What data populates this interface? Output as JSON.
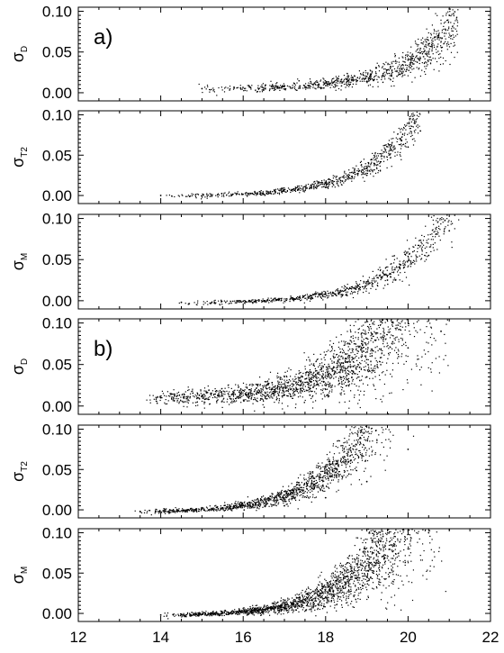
{
  "chart_data": [
    {
      "type": "scatter",
      "panel_label": "a)",
      "ylabel": "σ",
      "ylabel_sub": "D",
      "xlim": [
        12,
        22
      ],
      "ylim": [
        -0.01,
        0.105
      ],
      "yticks": [
        "0.00",
        "0.05",
        "0.10"
      ],
      "xticks": [],
      "curve": {
        "x0": 14.8,
        "x1": 21.2,
        "baseline": 0.005,
        "coef": 0.00052,
        "rate": 0.8,
        "xref": 14.8
      },
      "spread": 0.2,
      "density": 1.0,
      "trend": [
        {
          "x": 15,
          "y": 0.005
        },
        {
          "x": 18,
          "y": 0.012
        },
        {
          "x": 19,
          "y": 0.02
        },
        {
          "x": 20,
          "y": 0.04
        },
        {
          "x": 20.5,
          "y": 0.06
        },
        {
          "x": 21,
          "y": 0.095
        }
      ]
    },
    {
      "type": "scatter",
      "panel_label": "",
      "ylabel": "σ",
      "ylabel_sub": "T2",
      "xlim": [
        12,
        22
      ],
      "ylim": [
        -0.01,
        0.105
      ],
      "yticks": [
        "0.00",
        "0.05",
        "0.10"
      ],
      "xticks": [],
      "curve": {
        "x0": 14.0,
        "x1": 20.3,
        "baseline": 0.0,
        "coef": 0.0006,
        "rate": 0.82,
        "xref": 14.0
      },
      "spread": 0.12,
      "density": 0.8,
      "trend": [
        {
          "x": 14,
          "y": 0.0
        },
        {
          "x": 18,
          "y": 0.01
        },
        {
          "x": 19,
          "y": 0.025
        },
        {
          "x": 20,
          "y": 0.06
        },
        {
          "x": 20.3,
          "y": 0.08
        }
      ]
    },
    {
      "type": "scatter",
      "panel_label": "",
      "ylabel": "σ",
      "ylabel_sub": "M",
      "xlim": [
        12,
        22
      ],
      "ylim": [
        -0.01,
        0.105
      ],
      "yticks": [
        "0.00",
        "0.05",
        "0.10"
      ],
      "xticks": [],
      "curve": {
        "x0": 14.3,
        "x1": 21.3,
        "baseline": -0.002,
        "coef": 0.00055,
        "rate": 0.8,
        "xref": 14.3
      },
      "spread": 0.16,
      "density": 0.9,
      "trend": [
        {
          "x": 14.5,
          "y": -0.002
        },
        {
          "x": 18,
          "y": 0.008
        },
        {
          "x": 19.5,
          "y": 0.025
        },
        {
          "x": 20.5,
          "y": 0.055
        },
        {
          "x": 21,
          "y": 0.085
        }
      ]
    },
    {
      "type": "scatter",
      "panel_label": "b)",
      "ylabel": "σ",
      "ylabel_sub": "D",
      "xlim": [
        12,
        22
      ],
      "ylim": [
        -0.01,
        0.105
      ],
      "yticks": [
        "0.00",
        "0.05",
        "0.10"
      ],
      "xticks": [],
      "curve": {
        "x0": 13.6,
        "x1": 21.0,
        "baseline": 0.01,
        "coef": 0.0011,
        "rate": 0.74,
        "xref": 13.6
      },
      "spread": 0.35,
      "density": 2.6,
      "trend": [
        {
          "x": 14,
          "y": 0.01
        },
        {
          "x": 17,
          "y": 0.013
        },
        {
          "x": 18,
          "y": 0.02
        },
        {
          "x": 19,
          "y": 0.035
        },
        {
          "x": 20,
          "y": 0.07
        },
        {
          "x": 20.8,
          "y": 0.09
        }
      ]
    },
    {
      "type": "scatter",
      "panel_label": "",
      "ylabel": "σ",
      "ylabel_sub": "T2",
      "xlim": [
        12,
        22
      ],
      "ylim": [
        -0.01,
        0.105
      ],
      "yticks": [
        "0.00",
        "0.05",
        "0.10"
      ],
      "xticks": [],
      "curve": {
        "x0": 13.3,
        "x1": 20.4,
        "baseline": -0.002,
        "coef": 0.001,
        "rate": 0.82,
        "xref": 13.3
      },
      "spread": 0.22,
      "density": 2.0,
      "trend": [
        {
          "x": 13.5,
          "y": -0.002
        },
        {
          "x": 17,
          "y": 0.005
        },
        {
          "x": 18,
          "y": 0.015
        },
        {
          "x": 19,
          "y": 0.035
        },
        {
          "x": 20,
          "y": 0.075
        }
      ]
    },
    {
      "type": "scatter",
      "panel_label": "",
      "ylabel": "σ",
      "ylabel_sub": "M",
      "xlim": [
        12,
        22
      ],
      "ylim": [
        -0.01,
        0.105
      ],
      "yticks": [
        "0.00",
        "0.05",
        "0.10"
      ],
      "xticks": [
        "12",
        "14",
        "16",
        "18",
        "20",
        "22"
      ],
      "curve": {
        "x0": 14.0,
        "x1": 21.0,
        "baseline": -0.002,
        "coef": 0.0012,
        "rate": 0.8,
        "xref": 14.0
      },
      "spread": 0.32,
      "density": 2.8,
      "trend": [
        {
          "x": 14,
          "y": -0.002
        },
        {
          "x": 17,
          "y": 0.006
        },
        {
          "x": 18,
          "y": 0.02
        },
        {
          "x": 19,
          "y": 0.045
        },
        {
          "x": 20,
          "y": 0.08
        },
        {
          "x": 20.5,
          "y": 0.1
        }
      ]
    }
  ]
}
